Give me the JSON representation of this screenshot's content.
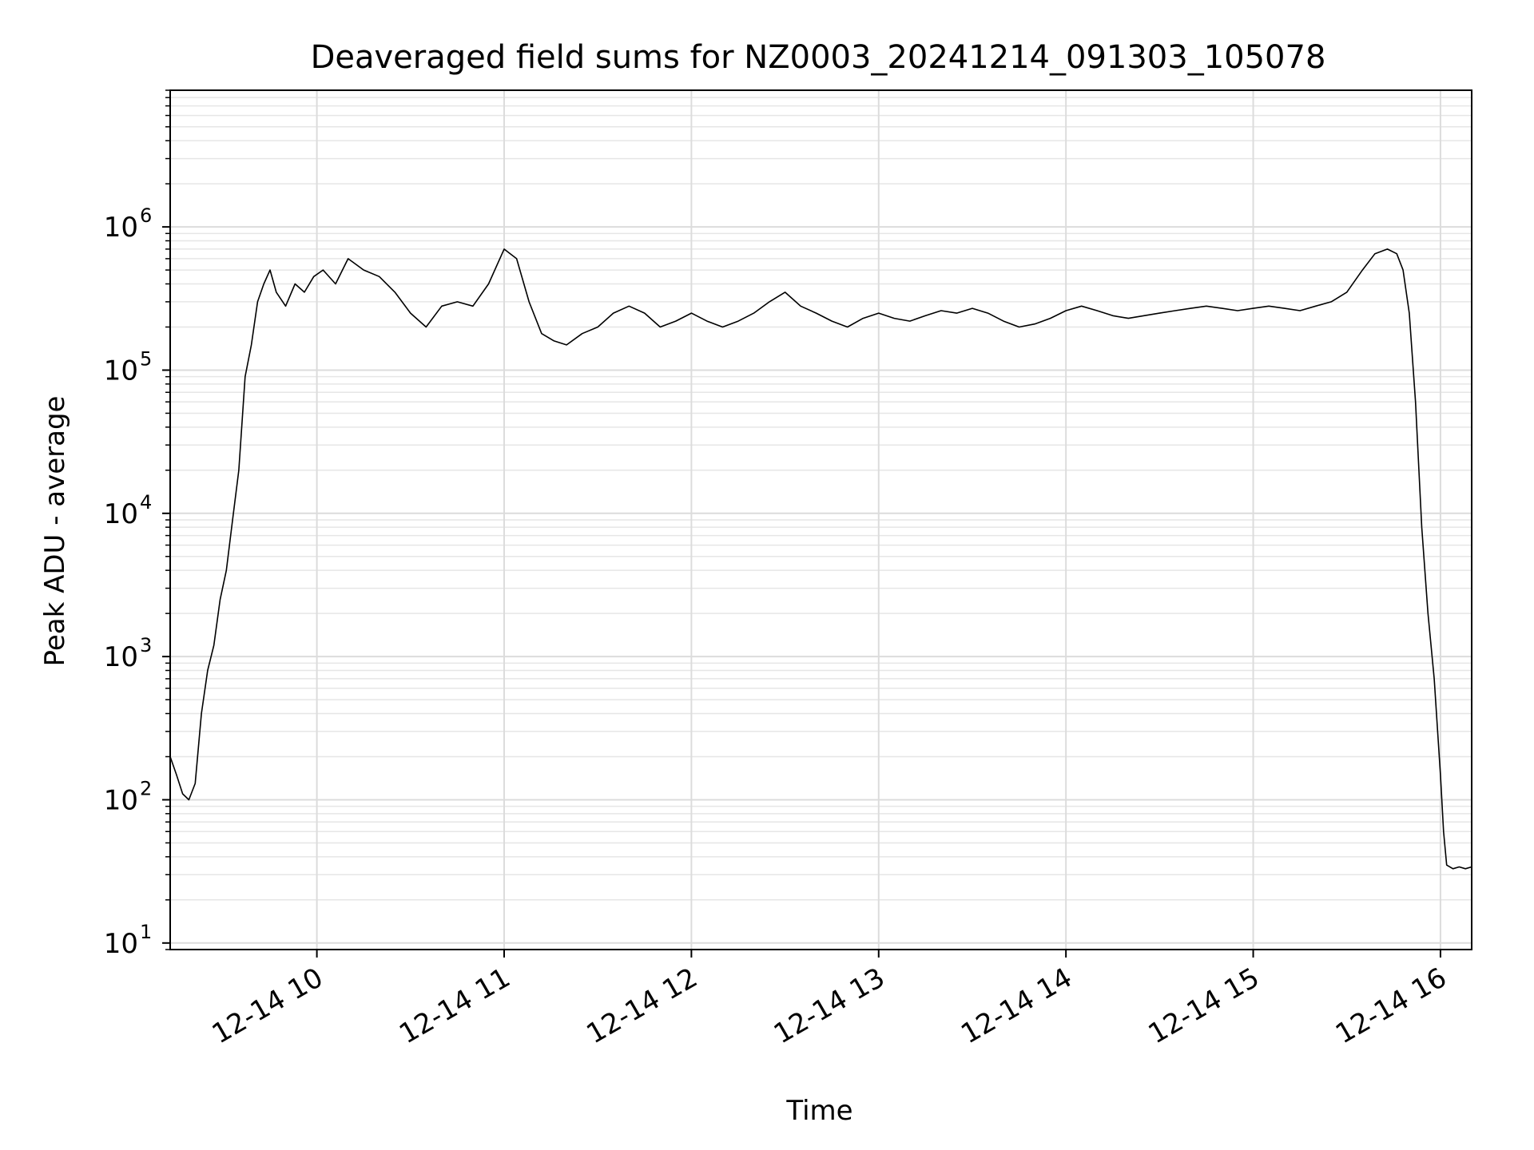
{
  "chart_data": {
    "type": "line",
    "title": "Deaveraged field sums for NZ0003_20241214_091303_105078",
    "xlabel": "Time",
    "ylabel": "Peak ADU - average",
    "yscale": "log",
    "ylim": [
      9,
      9000000
    ],
    "xlim": [
      "2024-12-14 09:13",
      "2024-12-14 16:10"
    ],
    "grid": true,
    "x_tick_labels": [
      "12-14 10",
      "12-14 11",
      "12-14 12",
      "12-14 13",
      "12-14 14",
      "12-14 15",
      "12-14 16"
    ],
    "y_tick_labels": [
      {
        "base": "10",
        "exp": "1"
      },
      {
        "base": "10",
        "exp": "2"
      },
      {
        "base": "10",
        "exp": "3"
      },
      {
        "base": "10",
        "exp": "4"
      },
      {
        "base": "10",
        "exp": "5"
      },
      {
        "base": "10",
        "exp": "6"
      }
    ],
    "series": [
      {
        "color": "#000000",
        "points": [
          [
            "2024-12-14 09:13",
            200
          ],
          [
            "2024-12-14 09:15",
            150
          ],
          [
            "2024-12-14 09:17",
            110
          ],
          [
            "2024-12-14 09:19",
            100
          ],
          [
            "2024-12-14 09:21",
            130
          ],
          [
            "2024-12-14 09:23",
            400
          ],
          [
            "2024-12-14 09:25",
            800
          ],
          [
            "2024-12-14 09:27",
            1200
          ],
          [
            "2024-12-14 09:29",
            2500
          ],
          [
            "2024-12-14 09:31",
            4000
          ],
          [
            "2024-12-14 09:33",
            9000
          ],
          [
            "2024-12-14 09:35",
            20000
          ],
          [
            "2024-12-14 09:37",
            90000
          ],
          [
            "2024-12-14 09:39",
            150000
          ],
          [
            "2024-12-14 09:41",
            300000
          ],
          [
            "2024-12-14 09:43",
            400000
          ],
          [
            "2024-12-14 09:45",
            500000
          ],
          [
            "2024-12-14 09:47",
            350000
          ],
          [
            "2024-12-14 09:50",
            280000
          ],
          [
            "2024-12-14 09:53",
            400000
          ],
          [
            "2024-12-14 09:56",
            350000
          ],
          [
            "2024-12-14 09:59",
            450000
          ],
          [
            "2024-12-14 10:02",
            500000
          ],
          [
            "2024-12-14 10:06",
            400000
          ],
          [
            "2024-12-14 10:10",
            600000
          ],
          [
            "2024-12-14 10:15",
            500000
          ],
          [
            "2024-12-14 10:20",
            450000
          ],
          [
            "2024-12-14 10:25",
            350000
          ],
          [
            "2024-12-14 10:30",
            250000
          ],
          [
            "2024-12-14 10:35",
            200000
          ],
          [
            "2024-12-14 10:40",
            280000
          ],
          [
            "2024-12-14 10:45",
            300000
          ],
          [
            "2024-12-14 10:50",
            280000
          ],
          [
            "2024-12-14 10:55",
            400000
          ],
          [
            "2024-12-14 11:00",
            700000
          ],
          [
            "2024-12-14 11:04",
            600000
          ],
          [
            "2024-12-14 11:08",
            300000
          ],
          [
            "2024-12-14 11:12",
            180000
          ],
          [
            "2024-12-14 11:16",
            160000
          ],
          [
            "2024-12-14 11:20",
            150000
          ],
          [
            "2024-12-14 11:25",
            180000
          ],
          [
            "2024-12-14 11:30",
            200000
          ],
          [
            "2024-12-14 11:35",
            250000
          ],
          [
            "2024-12-14 11:40",
            280000
          ],
          [
            "2024-12-14 11:45",
            250000
          ],
          [
            "2024-12-14 11:50",
            200000
          ],
          [
            "2024-12-14 11:55",
            220000
          ],
          [
            "2024-12-14 12:00",
            250000
          ],
          [
            "2024-12-14 12:05",
            220000
          ],
          [
            "2024-12-14 12:10",
            200000
          ],
          [
            "2024-12-14 12:15",
            220000
          ],
          [
            "2024-12-14 12:20",
            250000
          ],
          [
            "2024-12-14 12:25",
            300000
          ],
          [
            "2024-12-14 12:30",
            350000
          ],
          [
            "2024-12-14 12:35",
            280000
          ],
          [
            "2024-12-14 12:40",
            250000
          ],
          [
            "2024-12-14 12:45",
            220000
          ],
          [
            "2024-12-14 12:50",
            200000
          ],
          [
            "2024-12-14 12:55",
            230000
          ],
          [
            "2024-12-14 13:00",
            250000
          ],
          [
            "2024-12-14 13:05",
            230000
          ],
          [
            "2024-12-14 13:10",
            220000
          ],
          [
            "2024-12-14 13:15",
            240000
          ],
          [
            "2024-12-14 13:20",
            260000
          ],
          [
            "2024-12-14 13:25",
            250000
          ],
          [
            "2024-12-14 13:30",
            270000
          ],
          [
            "2024-12-14 13:35",
            250000
          ],
          [
            "2024-12-14 13:40",
            220000
          ],
          [
            "2024-12-14 13:45",
            200000
          ],
          [
            "2024-12-14 13:50",
            210000
          ],
          [
            "2024-12-14 13:55",
            230000
          ],
          [
            "2024-12-14 14:00",
            260000
          ],
          [
            "2024-12-14 14:05",
            280000
          ],
          [
            "2024-12-14 14:10",
            260000
          ],
          [
            "2024-12-14 14:15",
            240000
          ],
          [
            "2024-12-14 14:20",
            230000
          ],
          [
            "2024-12-14 14:25",
            240000
          ],
          [
            "2024-12-14 14:30",
            250000
          ],
          [
            "2024-12-14 14:35",
            260000
          ],
          [
            "2024-12-14 14:40",
            270000
          ],
          [
            "2024-12-14 14:45",
            280000
          ],
          [
            "2024-12-14 14:50",
            270000
          ],
          [
            "2024-12-14 14:55",
            260000
          ],
          [
            "2024-12-14 15:00",
            270000
          ],
          [
            "2024-12-14 15:05",
            280000
          ],
          [
            "2024-12-14 15:10",
            270000
          ],
          [
            "2024-12-14 15:15",
            260000
          ],
          [
            "2024-12-14 15:20",
            280000
          ],
          [
            "2024-12-14 15:25",
            300000
          ],
          [
            "2024-12-14 15:30",
            350000
          ],
          [
            "2024-12-14 15:35",
            500000
          ],
          [
            "2024-12-14 15:39",
            650000
          ],
          [
            "2024-12-14 15:43",
            700000
          ],
          [
            "2024-12-14 15:46",
            650000
          ],
          [
            "2024-12-14 15:48",
            500000
          ],
          [
            "2024-12-14 15:50",
            250000
          ],
          [
            "2024-12-14 15:52",
            60000
          ],
          [
            "2024-12-14 15:54",
            8000
          ],
          [
            "2024-12-14 15:56",
            2000
          ],
          [
            "2024-12-14 15:58",
            700
          ],
          [
            "2024-12-14 16:00",
            150
          ],
          [
            "2024-12-14 16:01",
            60
          ],
          [
            "2024-12-14 16:02",
            35
          ],
          [
            "2024-12-14 16:04",
            33
          ],
          [
            "2024-12-14 16:06",
            34
          ],
          [
            "2024-12-14 16:08",
            33
          ],
          [
            "2024-12-14 16:10",
            34
          ]
        ]
      }
    ]
  }
}
